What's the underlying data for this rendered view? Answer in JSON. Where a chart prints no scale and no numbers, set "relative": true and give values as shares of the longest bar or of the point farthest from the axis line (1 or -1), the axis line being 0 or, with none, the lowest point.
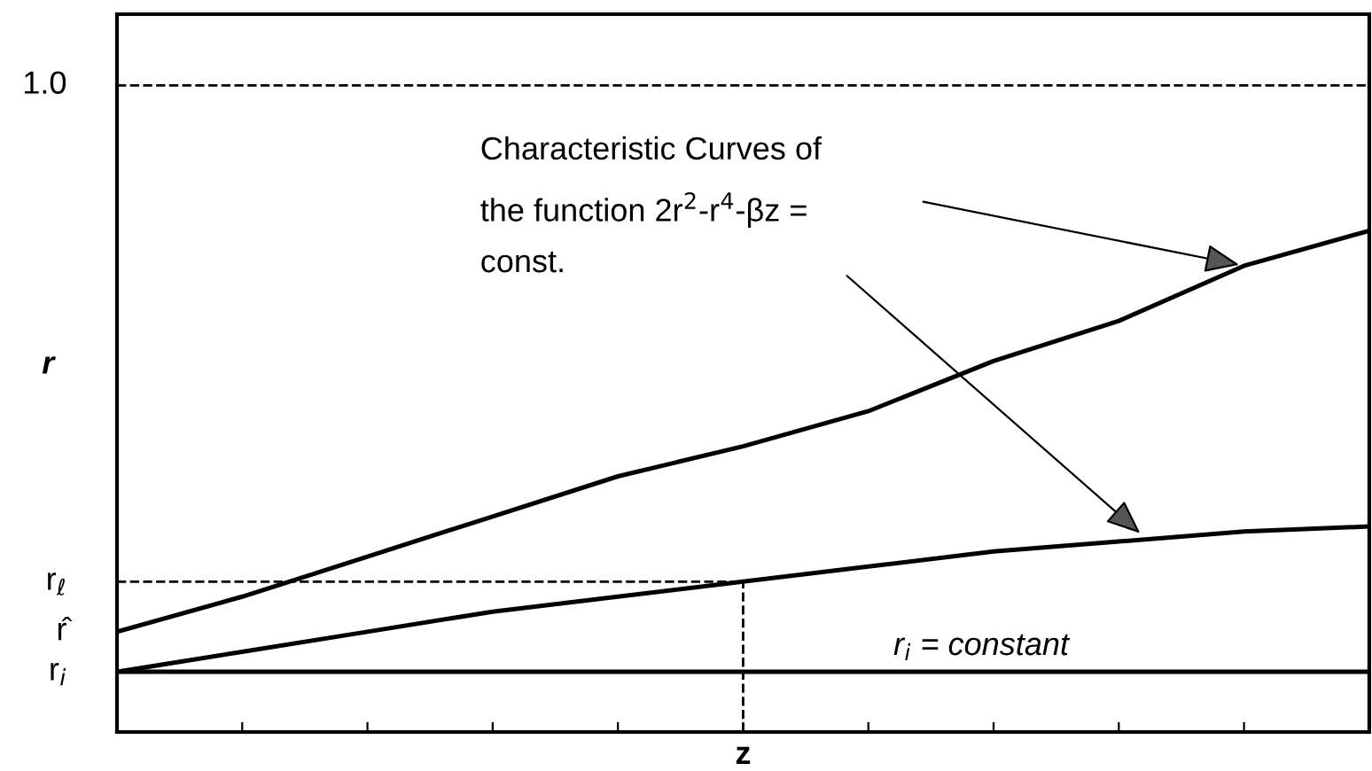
{
  "chart_data": {
    "type": "line",
    "relative": true,
    "xlabel": "z",
    "ylabel": "r",
    "categories": [
      null,
      null,
      null,
      null,
      null,
      null,
      null,
      null,
      null,
      null,
      null
    ],
    "series": [
      {
        "color": "#000000",
        "values": [
          0.2,
          0.27,
          0.35,
          0.43,
          0.51,
          0.57,
          0.64,
          0.74,
          0.82,
          0.93,
          1.0
        ]
      },
      {
        "color": "#000000",
        "values": [
          0.12,
          0.16,
          0.2,
          0.24,
          0.27,
          0.3,
          0.33,
          0.36,
          0.38,
          0.4,
          0.41
        ]
      },
      {
        "color": "#000000",
        "values": [
          0.12,
          0.12,
          0.12,
          0.12,
          0.12,
          0.12,
          0.12,
          0.12,
          0.12,
          0.12,
          0.12
        ]
      }
    ],
    "ref_lines": [
      {
        "axis": "y",
        "value": 1.29,
        "line_style": "dashed",
        "color": "#000000"
      },
      {
        "axis": "y",
        "value": 0.3,
        "label": "r$_{ℓ}$",
        "line_style": "dashed",
        "color": "#000000"
      }
    ],
    "annotations": [
      "Characteristic Curves of\nthe function 2r$^{2}$-r$^{4}$-βz =\nconst.",
      "1.0",
      "r̂",
      "r$_{i}$",
      "r$_{i}$ = constant"
    ],
    "grid": false,
    "legend": false,
    "marker": "none",
    "line_style": "solid"
  }
}
